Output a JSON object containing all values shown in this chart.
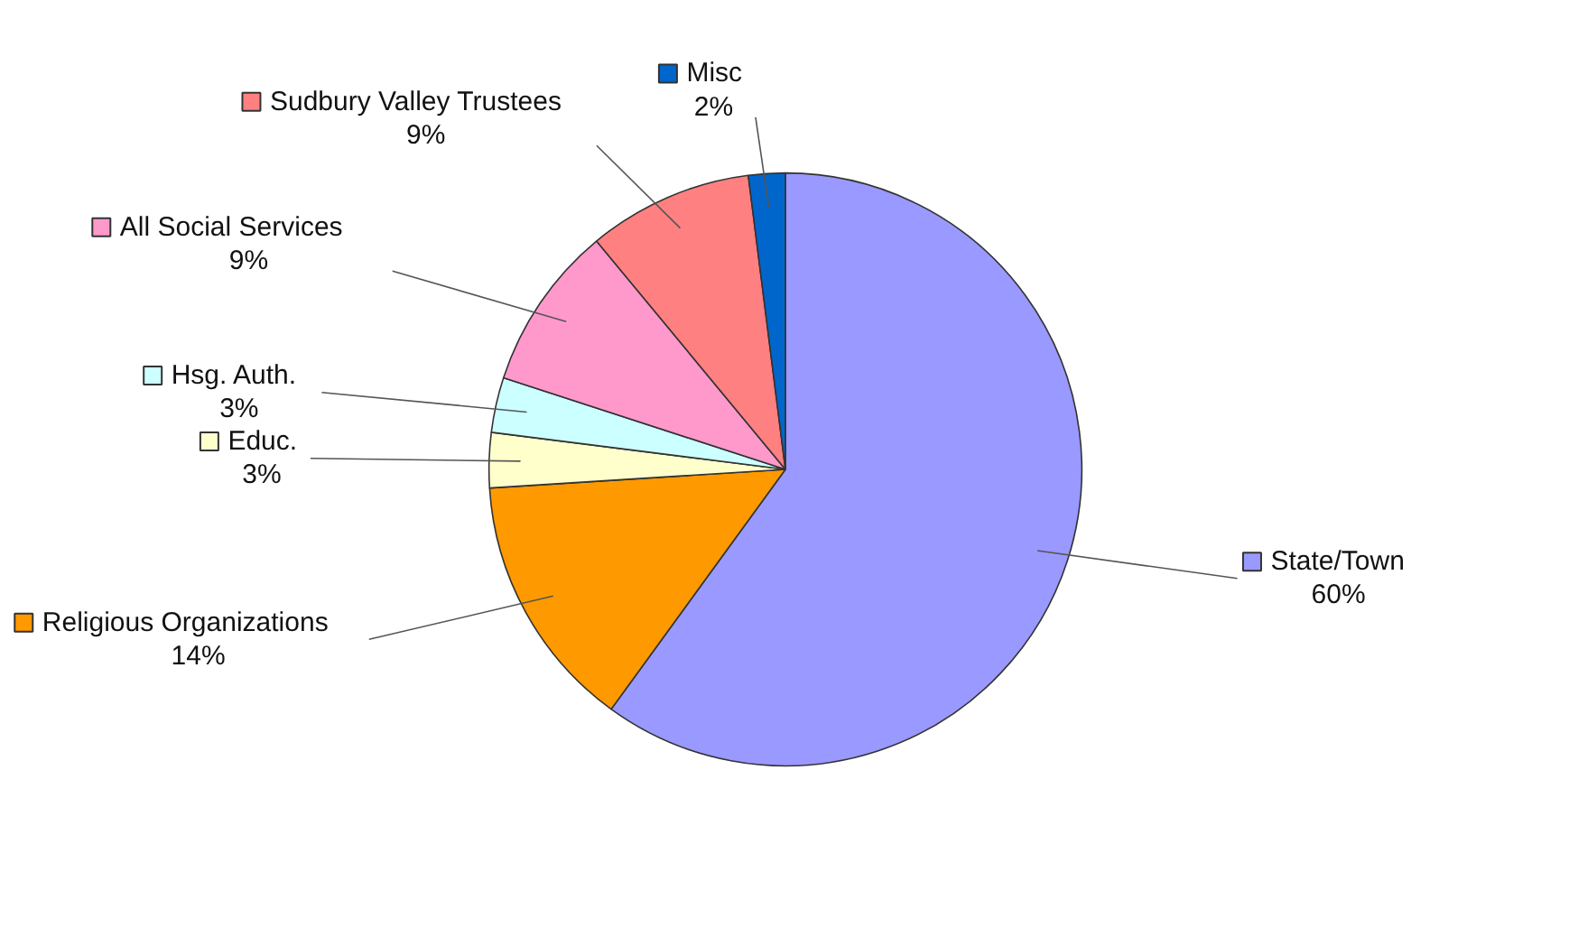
{
  "chart_data": {
    "type": "pie",
    "categories": [
      "State/Town",
      "Religious Organizations",
      "Educ.",
      "Hsg. Auth.",
      "All Social Services",
      "Sudbury Valley Trustees",
      "Misc"
    ],
    "values": [
      60,
      14,
      3,
      3,
      9,
      9,
      2
    ],
    "colors": [
      "#9999ff",
      "#ff9900",
      "#ffffcc",
      "#ccffff",
      "#ff99cc",
      "#ff8080",
      "#0066cc"
    ],
    "value_labels": [
      "60%",
      "14%",
      "3%",
      "3%",
      "9%",
      "9%",
      "2%"
    ],
    "legend": "left"
  }
}
